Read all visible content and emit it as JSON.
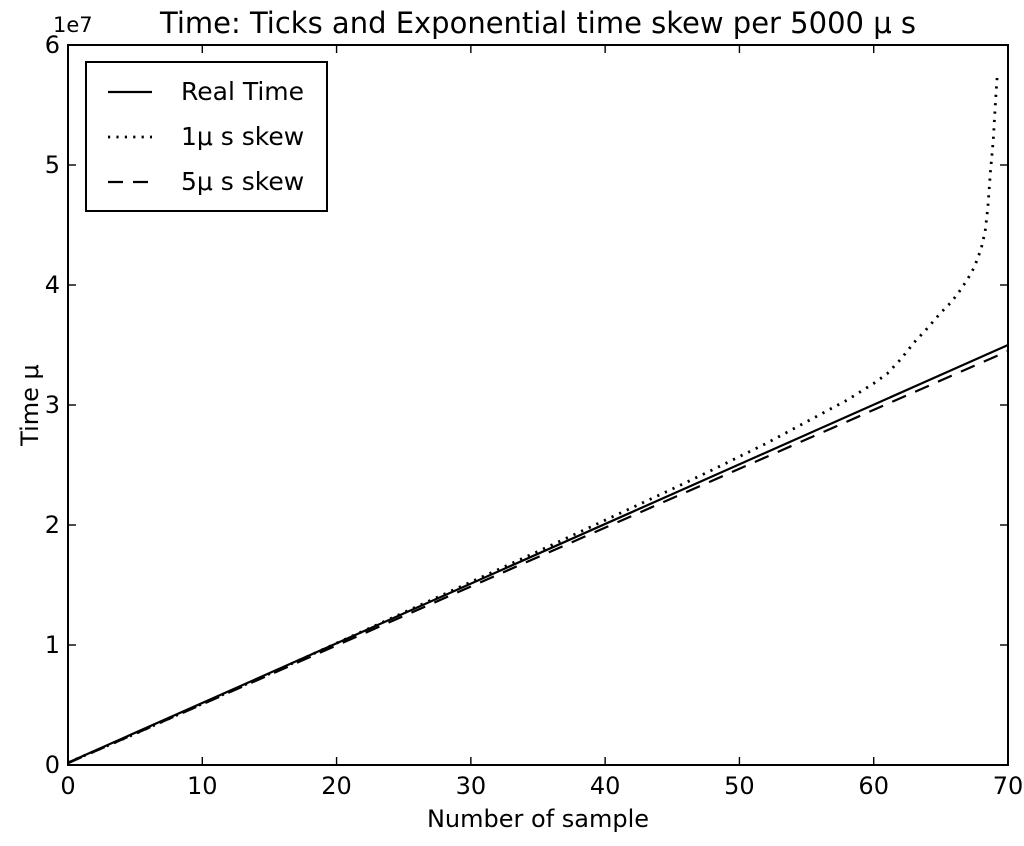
{
  "figure": {
    "background": "#ffffff",
    "foreground": "#000000"
  },
  "chart_data": {
    "type": "line",
    "title": "Time: Ticks and Exponential time skew per 5000 μ s",
    "xlabel": "Number of sample",
    "ylabel": "Time μ",
    "y_offset_label": "1e7",
    "xlim": [
      0,
      70
    ],
    "ylim": [
      0,
      60000000
    ],
    "xticks": [
      0,
      10,
      20,
      30,
      40,
      50,
      60,
      70
    ],
    "yticks": [
      0,
      1,
      2,
      3,
      4,
      5,
      6
    ],
    "ytick_multiplier": 10000000,
    "grid": false,
    "legend_position": "upper-left",
    "series": [
      {
        "name": "Real Time",
        "style": "solid",
        "color": "#000000",
        "points": [
          [
            0,
            200000
          ],
          [
            70,
            35000000
          ]
        ]
      },
      {
        "name": "1μ s skew",
        "style": "dotted",
        "color": "#000000",
        "points": [
          [
            0,
            200000
          ],
          [
            5,
            2600000
          ],
          [
            10,
            5100000
          ],
          [
            15,
            7600000
          ],
          [
            20,
            10150000
          ],
          [
            25,
            12700000
          ],
          [
            30,
            15250000
          ],
          [
            35,
            17800000
          ],
          [
            40,
            20400000
          ],
          [
            45,
            23000000
          ],
          [
            48,
            24600000
          ],
          [
            50,
            25700000
          ],
          [
            52,
            26800000
          ],
          [
            54,
            28000000
          ],
          [
            56,
            29200000
          ],
          [
            57,
            29800000
          ],
          [
            58,
            30400000
          ],
          [
            59,
            31100000
          ],
          [
            60,
            31800000
          ],
          [
            61,
            32600000
          ],
          [
            62,
            33800000
          ],
          [
            63,
            35200000
          ],
          [
            64,
            36400000
          ],
          [
            65,
            37700000
          ],
          [
            65.8,
            38600000
          ],
          [
            66.4,
            39500000
          ],
          [
            67,
            40500000
          ],
          [
            67.5,
            41500000
          ],
          [
            68,
            43000000
          ],
          [
            68.3,
            44500000
          ],
          [
            68.5,
            46500000
          ],
          [
            68.7,
            49500000
          ],
          [
            68.9,
            52000000
          ],
          [
            69.0,
            54000000
          ],
          [
            69.1,
            55800000
          ],
          [
            69.2,
            57500000
          ]
        ]
      },
      {
        "name": "5μ s skew",
        "style": "dashed",
        "color": "#000000",
        "points": [
          [
            0,
            150000
          ],
          [
            70,
            34500000
          ]
        ]
      }
    ]
  }
}
